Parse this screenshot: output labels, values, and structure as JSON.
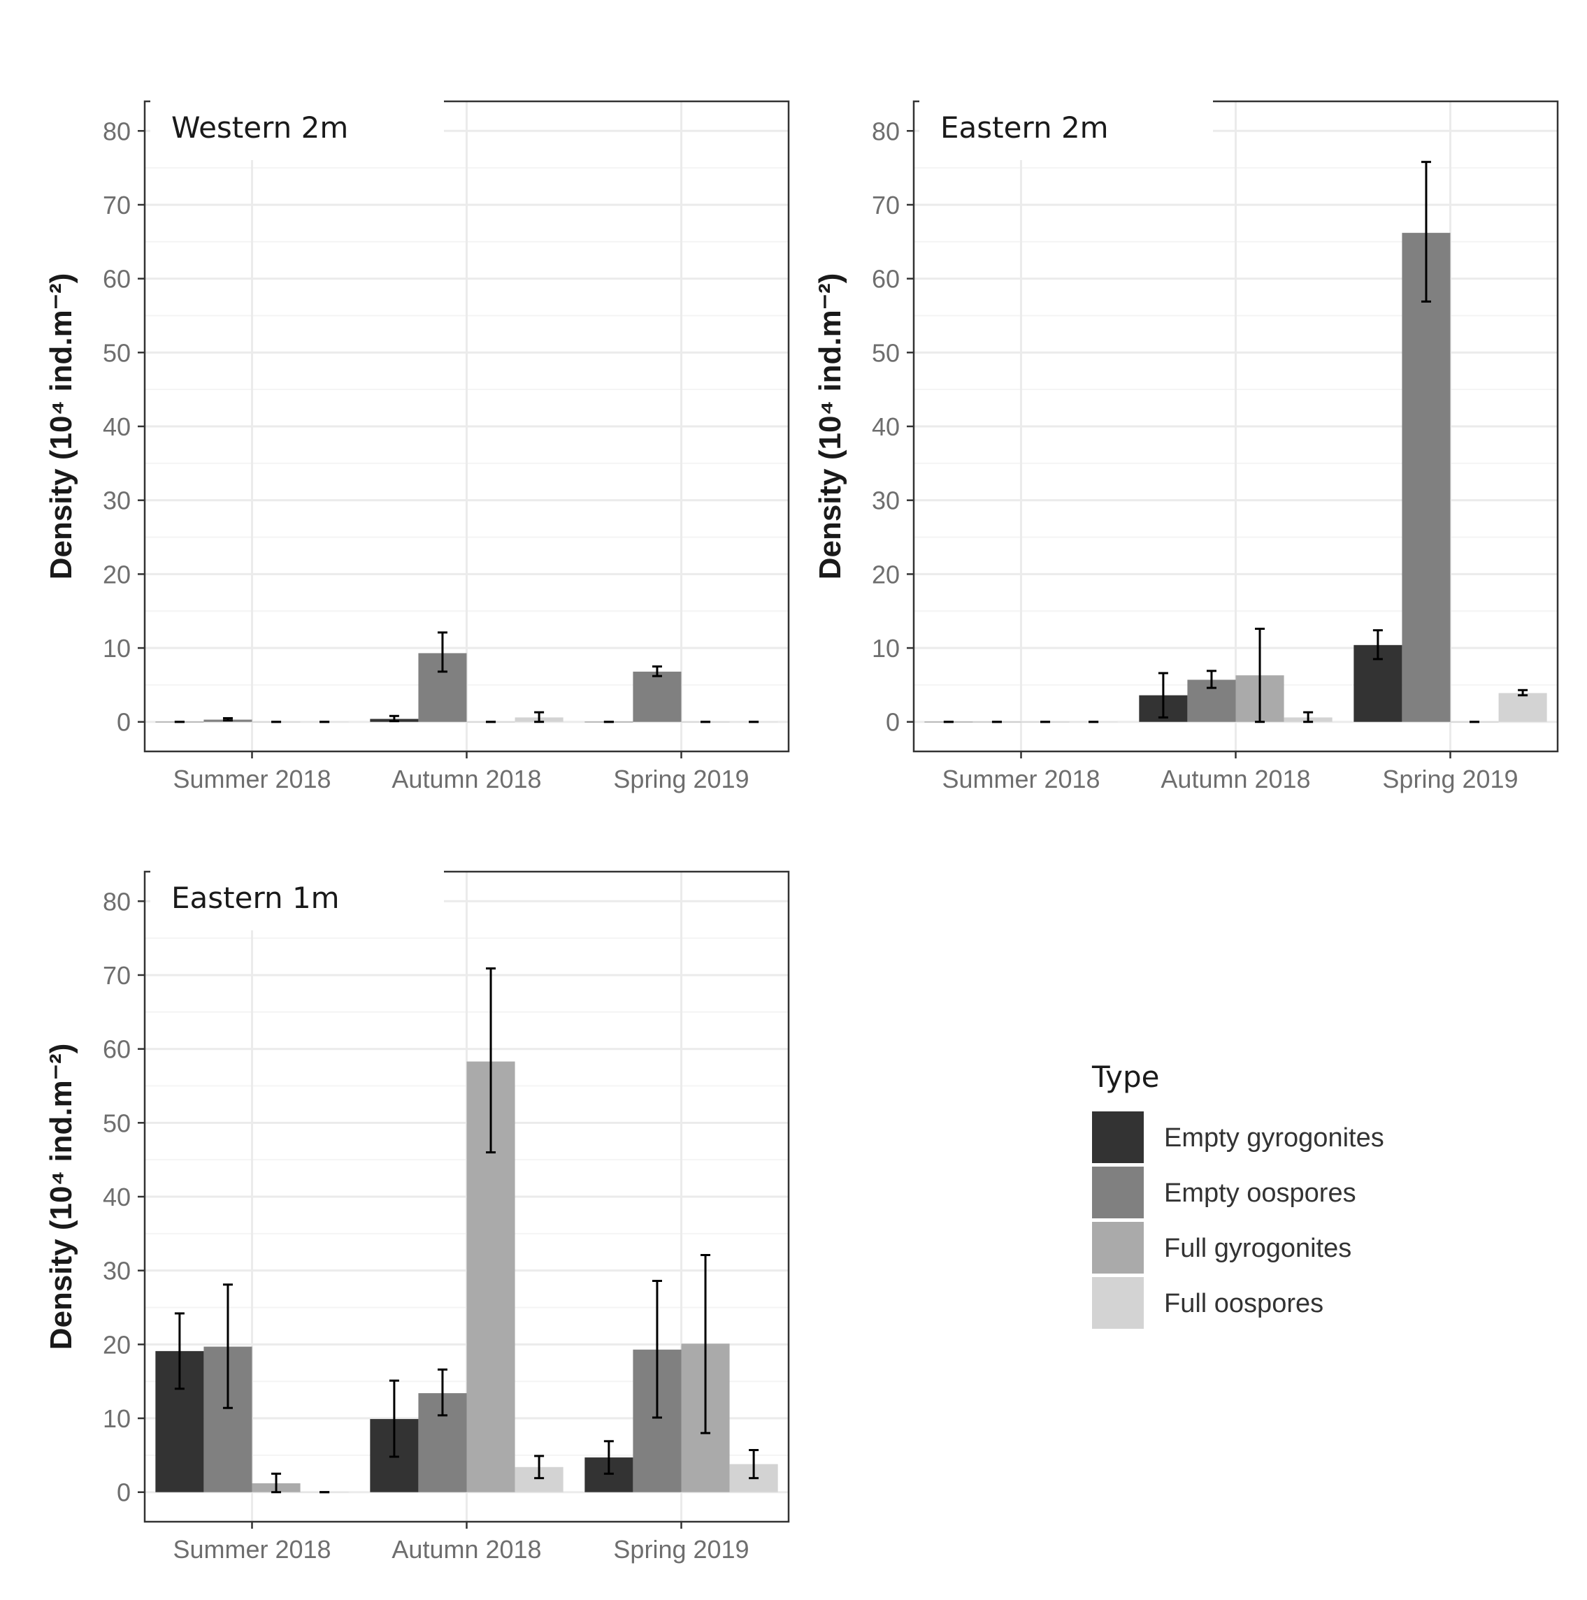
{
  "legend": {
    "title": "Type",
    "items": [
      {
        "label": "Empty gyrogonites",
        "color": "#333333"
      },
      {
        "label": "Empty oospores",
        "color": "#808080"
      },
      {
        "label": "Full gyrogonites",
        "color": "#aaaaaa"
      },
      {
        "label": "Full oospores",
        "color": "#d3d3d3"
      }
    ]
  },
  "chart_data": [
    {
      "type": "bar",
      "title": "Western 2m",
      "xlabel": "",
      "ylabel": "Density (10⁴ ind.m⁻²)",
      "ylim": [
        -4,
        84
      ],
      "yticks": [
        0,
        10,
        20,
        30,
        40,
        50,
        60,
        70,
        80
      ],
      "categories": [
        "Summer 2018",
        "Autumn 2018",
        "Spring 2019"
      ],
      "series": [
        {
          "name": "Empty gyrogonites",
          "values": [
            0,
            0.4,
            0
          ],
          "err_low": [
            0,
            0.1,
            0
          ],
          "err_high": [
            0,
            0.8,
            0
          ]
        },
        {
          "name": "Empty oospores",
          "values": [
            0.3,
            9.3,
            6.8
          ],
          "err_low": [
            0.2,
            6.8,
            6.2
          ],
          "err_high": [
            0.5,
            12.1,
            7.5
          ]
        },
        {
          "name": "Full gyrogonites",
          "values": [
            0,
            0,
            0
          ],
          "err_low": [
            0,
            0,
            0
          ],
          "err_high": [
            0,
            0,
            0
          ]
        },
        {
          "name": "Full oospores",
          "values": [
            0,
            0.6,
            0
          ],
          "err_low": [
            0,
            0,
            0
          ],
          "err_high": [
            0,
            1.3,
            0
          ]
        }
      ]
    },
    {
      "type": "bar",
      "title": "Eastern 2m",
      "xlabel": "",
      "ylabel": "Density (10⁴ ind.m⁻²)",
      "ylim": [
        -4,
        84
      ],
      "yticks": [
        0,
        10,
        20,
        30,
        40,
        50,
        60,
        70,
        80
      ],
      "categories": [
        "Summer 2018",
        "Autumn 2018",
        "Spring 2019"
      ],
      "series": [
        {
          "name": "Empty gyrogonites",
          "values": [
            0,
            3.6,
            10.4
          ],
          "err_low": [
            0,
            0.6,
            8.5
          ],
          "err_high": [
            0,
            6.6,
            12.4
          ]
        },
        {
          "name": "Empty oospores",
          "values": [
            0,
            5.7,
            66.2
          ],
          "err_low": [
            0,
            4.6,
            56.9
          ],
          "err_high": [
            0,
            6.9,
            75.8
          ]
        },
        {
          "name": "Full gyrogonites",
          "values": [
            0,
            6.3,
            0
          ],
          "err_low": [
            0,
            0,
            0
          ],
          "err_high": [
            0,
            12.6,
            0
          ]
        },
        {
          "name": "Full oospores",
          "values": [
            0,
            0.6,
            3.9
          ],
          "err_low": [
            0,
            0,
            3.6
          ],
          "err_high": [
            0,
            1.3,
            4.3
          ]
        }
      ]
    },
    {
      "type": "bar",
      "title": "Eastern 1m",
      "xlabel": "",
      "ylabel": "Density (10⁴ ind.m⁻²)",
      "ylim": [
        -4,
        84
      ],
      "yticks": [
        0,
        10,
        20,
        30,
        40,
        50,
        60,
        70,
        80
      ],
      "categories": [
        "Summer 2018",
        "Autumn 2018",
        "Spring 2019"
      ],
      "series": [
        {
          "name": "Empty gyrogonites",
          "values": [
            19.1,
            9.9,
            4.7
          ],
          "err_low": [
            14.0,
            4.8,
            2.5
          ],
          "err_high": [
            24.2,
            15.1,
            6.9
          ]
        },
        {
          "name": "Empty oospores",
          "values": [
            19.7,
            13.4,
            19.3
          ],
          "err_low": [
            11.4,
            10.4,
            10.1
          ],
          "err_high": [
            28.1,
            16.6,
            28.6
          ]
        },
        {
          "name": "Full gyrogonites",
          "values": [
            1.2,
            58.3,
            20.1
          ],
          "err_low": [
            0,
            46.0,
            8.0
          ],
          "err_high": [
            2.5,
            70.9,
            32.1
          ]
        },
        {
          "name": "Full oospores",
          "values": [
            0,
            3.4,
            3.8
          ],
          "err_low": [
            0,
            1.9,
            1.9
          ],
          "err_high": [
            0,
            4.9,
            5.7
          ]
        }
      ]
    }
  ]
}
